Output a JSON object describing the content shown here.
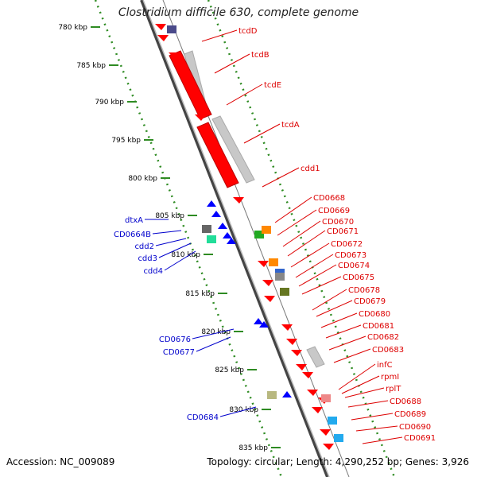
{
  "title": "Clostridium difficile 630, complete genome",
  "footer": {
    "accession": "Accession: NC_009089",
    "summary": "Topology: circular; Length: 4,290,252 bp; Genes: 3,926"
  },
  "colors": {
    "backbone": "#8a8a8a",
    "scale": "#2e8b22",
    "forward_label": "#dd0000",
    "reverse_label": "#0000cc",
    "forward_gene": "#ff0000",
    "reverse_gene": "#0000ff",
    "similarity": "#c8c8c8"
  },
  "scale_unit": "kbp",
  "ticks": [
    780,
    785,
    790,
    795,
    800,
    805,
    810,
    815,
    820,
    825,
    830,
    835
  ],
  "forward_genes": [
    "tcdD",
    "tcdB",
    "tcdE",
    "tcdA",
    "cdd1",
    "CD0668",
    "CD0669",
    "CD0670",
    "CD0671",
    "CD0672",
    "CD0673",
    "CD0674",
    "CD0675",
    "CD0678",
    "CD0679",
    "CD0680",
    "CD0681",
    "CD0682",
    "CD0683",
    "infC",
    "rpmI",
    "rplT",
    "CD0688",
    "CD0689",
    "CD0690",
    "CD0691"
  ],
  "reverse_genes": [
    "dtxA",
    "CD0664B",
    "cdd2",
    "cdd3",
    "cdd4",
    "CD0676",
    "CD0677",
    "CD0684"
  ]
}
